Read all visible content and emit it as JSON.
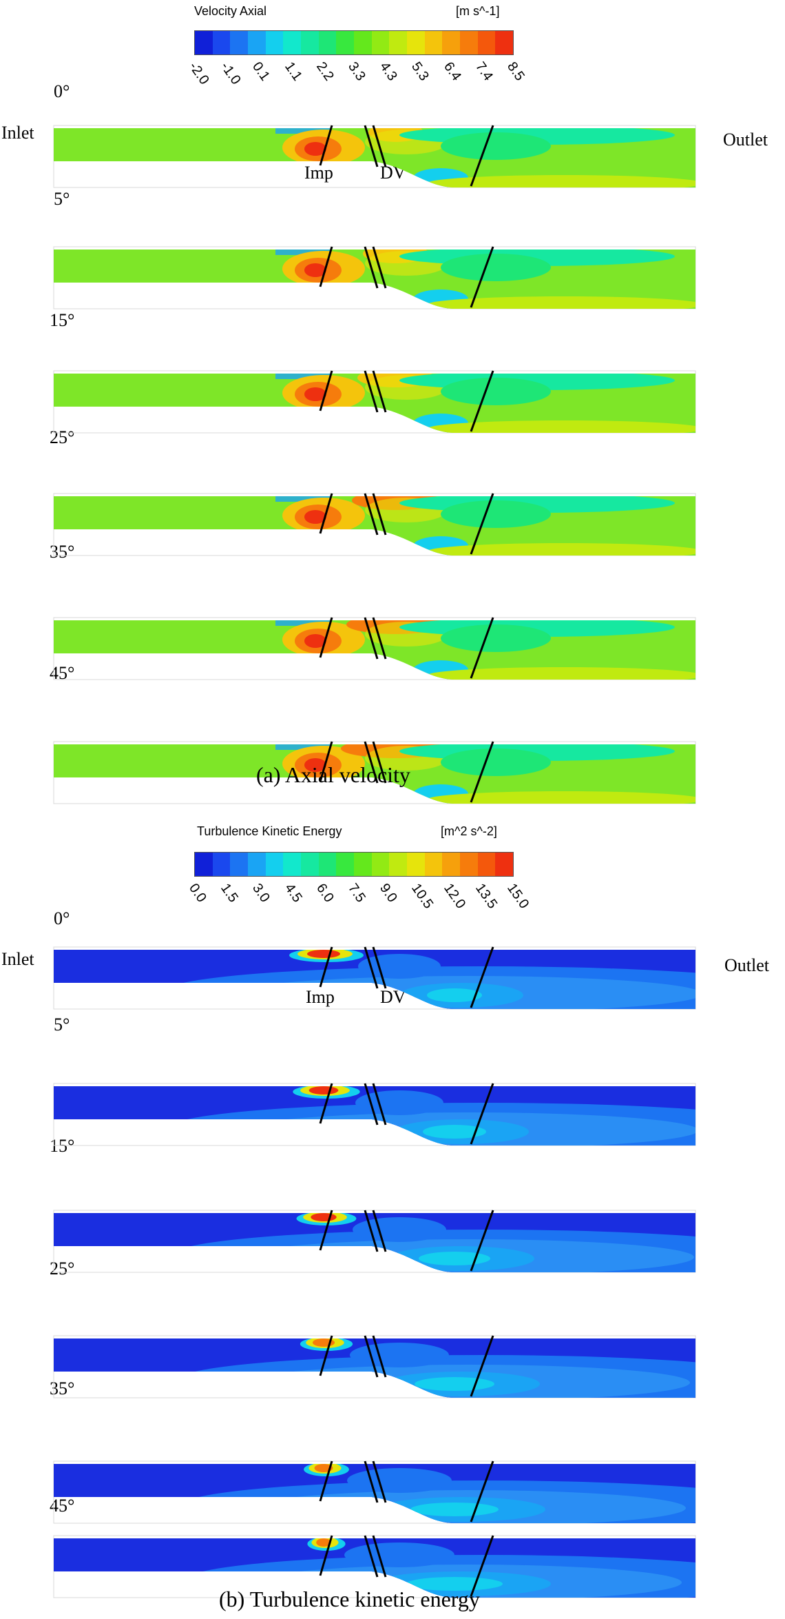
{
  "figure_a": {
    "legend": {
      "title": "Velocity Axial",
      "units": "[m s^-1]",
      "ticks": [
        "-2.0",
        "-1.0",
        "0.1",
        "1.1",
        "2.2",
        "3.3",
        "4.3",
        "5.3",
        "6.4",
        "7.4",
        "8.5"
      ],
      "colors": [
        "#1020d8",
        "#1a48ee",
        "#1c74f2",
        "#1aa4f4",
        "#14cfee",
        "#12e8cc",
        "#16e8a0",
        "#1ee676",
        "#38e83e",
        "#64e81c",
        "#92ea14",
        "#c0ea10",
        "#e6e40c",
        "#f4c40c",
        "#f6a00c",
        "#f67c0c",
        "#f4580c",
        "#ee3010"
      ]
    },
    "side_labels": {
      "inlet": "Inlet",
      "outlet": "Outlet"
    },
    "component_labels": {
      "impeller": "Imp",
      "diffuser": "DV"
    },
    "angles": [
      "0°",
      "5°",
      "15°",
      "25°",
      "35°",
      "45°"
    ],
    "caption": "(a)   Axial velocity"
  },
  "figure_b": {
    "legend": {
      "title": "Turbulence Kinetic Energy",
      "units": "[m^2 s^-2]",
      "ticks": [
        "0.0",
        "1.5",
        "3.0",
        "4.5",
        "6.0",
        "7.5",
        "9.0",
        "10.5",
        "12.0",
        "13.5",
        "15.0"
      ],
      "colors": [
        "#1020d8",
        "#1a48ee",
        "#1c74f2",
        "#1aa4f4",
        "#14cfee",
        "#12e8cc",
        "#16e8a0",
        "#1ee676",
        "#38e83e",
        "#64e81c",
        "#92ea14",
        "#c0ea10",
        "#e6e40c",
        "#f4c40c",
        "#f6a00c",
        "#f67c0c",
        "#f4580c",
        "#ee3010"
      ]
    },
    "side_labels": {
      "inlet": "Inlet",
      "outlet": "Outlet"
    },
    "component_labels": {
      "impeller": "Imp",
      "diffuser": "DV"
    },
    "angles": [
      "0°",
      "5°",
      "15°",
      "25°",
      "35°",
      "45°"
    ],
    "caption": "(b)  Turbulence kinetic energy"
  }
}
